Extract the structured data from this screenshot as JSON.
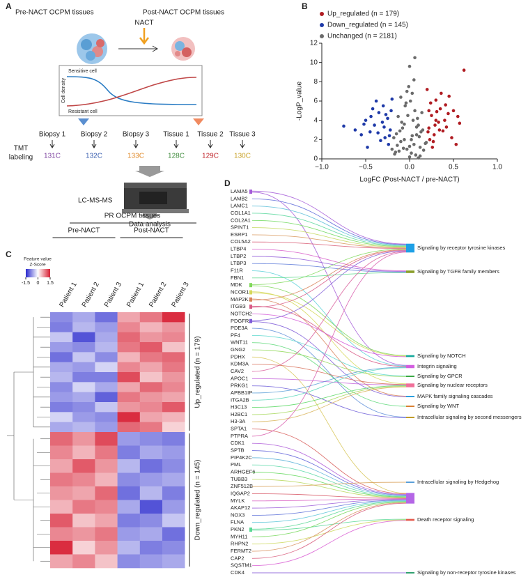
{
  "panel_a": {
    "label": "A",
    "pre_title": "Pre-NACT OCPM tissues",
    "post_title": "Post-NACT OCPM tissues",
    "treatment": "NACT",
    "sensitive": "Sensitive cell",
    "resistant": "Resistant cell",
    "density": "Cell density",
    "labeling": [
      "TMT",
      "labeling"
    ],
    "samples": [
      {
        "name": "Biopsy 1",
        "tag": "131C",
        "color": "#7b3f9e"
      },
      {
        "name": "Biopsy 2",
        "tag": "132C",
        "color": "#3a5fb0"
      },
      {
        "name": "Biopsy 3",
        "tag": "133C",
        "color": "#e08a2a"
      },
      {
        "name": "Tissue 1",
        "tag": "128C",
        "color": "#3d8a3a"
      },
      {
        "name": "Tissue 2",
        "tag": "129C",
        "color": "#c0242a"
      },
      {
        "name": "Tissue 3",
        "tag": "130C",
        "color": "#c9a227"
      }
    ],
    "instrument": "LC-MS-MS",
    "analysis": "Data analysis"
  },
  "chart_data": {
    "type": "scatter",
    "label": "B",
    "xlabel": "LogFC (Post-NACT / pre-NACT)",
    "ylabel": "-LogP_value",
    "xlim": [
      -1,
      1
    ],
    "xticks": [
      {
        "value": -1,
        "label": "−1.0"
      },
      {
        "value": -0.5,
        "label": "−0.5"
      },
      {
        "value": 0,
        "label": "0.0"
      },
      {
        "value": 0.5,
        "label": "0.5"
      },
      {
        "value": 1,
        "label": "1.0"
      }
    ],
    "ylim": [
      0,
      12
    ],
    "yticks": [
      0,
      2,
      4,
      6,
      8,
      10,
      12
    ],
    "legend": "top-left",
    "series": [
      {
        "name": "Up_regulated (n = 179)",
        "color": "#b01c22",
        "x": [
          0.25,
          0.3,
          0.22,
          0.35,
          0.4,
          0.28,
          0.45,
          0.5,
          0.62,
          0.2,
          0.33,
          0.27,
          0.38,
          0.55,
          0.42,
          0.24,
          0.31,
          0.48,
          0.21,
          0.36,
          0.29,
          0.53,
          0.26,
          0.44,
          0.23,
          0.34,
          0.41,
          0.3,
          0.57,
          0.22
        ],
        "y": [
          4.5,
          6.1,
          3.2,
          5.2,
          4.0,
          2.5,
          6.5,
          5.0,
          9.2,
          7.2,
          3.8,
          1.8,
          2.9,
          4.4,
          3.3,
          5.8,
          4.9,
          2.2,
          2.8,
          6.8,
          3.5,
          1.5,
          1.2,
          4.7,
          2.0,
          3.0,
          5.6,
          4.0,
          3.7,
          5.0
        ]
      },
      {
        "name": "Down_regulated (n = 145)",
        "color": "#1f3aa8",
        "x": [
          -0.25,
          -0.3,
          -0.22,
          -0.35,
          -0.4,
          -0.28,
          -0.45,
          -0.5,
          -0.75,
          -0.2,
          -0.33,
          -0.38,
          -0.55,
          -0.42,
          -0.24,
          -0.31,
          -0.62,
          -0.27,
          -0.48,
          -0.36,
          -0.23,
          -0.29,
          -0.44,
          -0.21,
          -0.52
        ],
        "y": [
          4.2,
          5.5,
          3.0,
          4.8,
          3.5,
          2.2,
          2.8,
          4.0,
          3.4,
          6.2,
          1.9,
          6.0,
          2.5,
          5.2,
          1.5,
          3.8,
          3.0,
          4.6,
          1.2,
          2.7,
          2.4,
          3.3,
          4.4,
          5.0,
          3.6
        ]
      },
      {
        "name": "Unchanged (n = 2181)",
        "color": "#6b6b6b",
        "x": [
          0,
          0.02,
          -0.03,
          0.05,
          -0.06,
          0.08,
          -0.1,
          0.12,
          -0.12,
          0.15,
          -0.15,
          0.18,
          -0.18,
          0.1,
          -0.08,
          0.04,
          -0.02,
          0.06,
          -0.05,
          0.13,
          -0.14,
          0.16,
          -0.17,
          0.01,
          0.03,
          -0.01,
          0.09,
          -0.09,
          0.11,
          -0.11,
          0.07,
          -0.07,
          0.14,
          -0.13,
          0.0,
          0.05,
          -0.04,
          0.02,
          -0.2,
          0.19,
          -0.1,
          0.08,
          0.12,
          -0.16,
          0.0,
          0.03,
          -0.06,
          0.1,
          -0.03,
          0.06
        ],
        "y": [
          0.2,
          0.6,
          1.0,
          1.5,
          2.0,
          2.5,
          1.8,
          1.2,
          0.8,
          3.0,
          2.6,
          1.6,
          2.2,
          3.5,
          3.2,
          4.0,
          4.5,
          5.0,
          5.5,
          2.8,
          1.4,
          0.9,
          0.5,
          6.0,
          6.8,
          7.5,
          4.2,
          3.8,
          2.3,
          2.9,
          0.4,
          1.1,
          4.8,
          4.4,
          9.6,
          8.2,
          5.8,
          2.0,
          1.0,
          1.7,
          6.4,
          3.3,
          0.3,
          0.7,
          1.3,
          2.4,
          3.6,
          0.1,
          7.0,
          10.5
        ]
      }
    ]
  },
  "heatmap": {
    "label": "C",
    "title": "PR OCPM tissues",
    "groups": [
      "Pre-NACT",
      "Post-NACT"
    ],
    "columns": [
      "Patient 1",
      "Patient 2",
      "Patient 3",
      "Patient 1",
      "Patient 2",
      "Patient 3"
    ],
    "colorbar_title": [
      "Feature value",
      "Z-Score"
    ],
    "zlim": [
      -1.5,
      1.5
    ],
    "zticks": [
      -1.5,
      0,
      1.5
    ],
    "clusters": [
      {
        "name": "Up_regulated (n = 179)",
        "rows": [
          [
            -0.8,
            -0.6,
            -1.0,
            0.6,
            0.9,
            1.4
          ],
          [
            -0.9,
            -0.5,
            -0.7,
            0.8,
            0.5,
            0.7
          ],
          [
            -0.4,
            -1.2,
            -0.6,
            1.0,
            0.7,
            0.8
          ],
          [
            -0.7,
            -0.8,
            -0.5,
            0.9,
            1.1,
            0.4
          ],
          [
            -1.0,
            -0.4,
            -0.8,
            0.5,
            0.9,
            1.0
          ],
          [
            -0.6,
            -0.7,
            -0.3,
            0.8,
            0.6,
            0.9
          ],
          [
            -0.5,
            -0.9,
            -0.9,
            1.2,
            0.4,
            0.7
          ],
          [
            -0.8,
            -0.3,
            -0.6,
            0.6,
            1.0,
            0.8
          ],
          [
            -0.7,
            -0.6,
            -1.1,
            0.9,
            0.7,
            0.6
          ],
          [
            -0.9,
            -0.8,
            -0.4,
            0.7,
            0.8,
            1.1
          ],
          [
            -0.3,
            -0.7,
            -0.8,
            1.4,
            0.6,
            0.5
          ],
          [
            -0.6,
            -0.5,
            -0.7,
            1.0,
            0.9,
            0.3
          ]
        ]
      },
      {
        "name": "Down_regulated (n = 145)",
        "rows": [
          [
            1.0,
            0.7,
            1.2,
            -0.7,
            -0.8,
            -0.9
          ],
          [
            0.8,
            0.5,
            0.9,
            -0.9,
            -0.6,
            -0.7
          ],
          [
            0.6,
            1.1,
            0.7,
            -0.5,
            -1.0,
            -0.8
          ],
          [
            0.9,
            0.8,
            0.5,
            -0.8,
            -0.7,
            -0.6
          ],
          [
            0.7,
            0.6,
            1.0,
            -1.0,
            -0.5,
            -0.9
          ],
          [
            0.5,
            0.9,
            0.8,
            -0.6,
            -1.2,
            -0.7
          ],
          [
            1.1,
            0.4,
            0.6,
            -0.9,
            -0.8,
            -0.4
          ],
          [
            0.8,
            0.7,
            0.9,
            -0.7,
            -0.6,
            -1.0
          ],
          [
            1.4,
            0.3,
            0.7,
            -0.5,
            -0.9,
            -0.8
          ],
          [
            0.6,
            0.8,
            0.4,
            -0.8,
            -0.7,
            -0.6
          ]
        ]
      }
    ]
  },
  "sankey": {
    "label": "D",
    "genes": [
      "LAMA5",
      "LAMB2",
      "LAMC1",
      "COL1A1",
      "COL2A1",
      "SPINT1",
      "ESRP1",
      "COL5A2",
      "LTBP4",
      "LTBP2",
      "LTBP3",
      "F11R",
      "FBN1",
      "MDK",
      "NCOR1",
      "MAP2K1",
      "ITGB3",
      "NOTCH2",
      "PDGFRA",
      "PDE3A",
      "PF4",
      "WNT11",
      "GNG2",
      "PDHX",
      "KDM3A",
      "CAV2",
      "APOC1",
      "PRKG1",
      "APBB1IP",
      "ITGA2B",
      "H3C13",
      "H2BC1",
      "H3-3A",
      "SPTA1",
      "PTPRA",
      "CDK1",
      "SPTB",
      "PIP4K2C",
      "PML",
      "ARHGEF6",
      "TUBB3",
      "ZNF512B",
      "IQGAP2",
      "MYLK",
      "AKAP12",
      "NOX3",
      "FLNA",
      "PKN2",
      "MYH11",
      "RHPN2",
      "FERMT2",
      "CAP2",
      "SQSTM1",
      "CDK4"
    ],
    "pathways": [
      {
        "name": "Signaling by receptor tyrosine kinases",
        "color": "#1ea0e6"
      },
      {
        "name": "Signaling by TGFB family members",
        "color": "#8a9e2a"
      },
      {
        "name": "Signaling by NOTCH",
        "color": "#16a99c"
      },
      {
        "name": "Integrin signaling",
        "color": "#d35ee0"
      },
      {
        "name": "Signaling by GPCR",
        "color": "#3aa845"
      },
      {
        "name": "Signaling by nuclear receptors",
        "color": "#f0709a"
      },
      {
        "name": "MAPK family signaling cascades",
        "color": "#2a9fe0"
      },
      {
        "name": "Signaling by WNT",
        "color": "#d98032"
      },
      {
        "name": "Intracellular signaling by second messengers",
        "color": "#c09c28"
      },
      {
        "name": "Intracellular signaling by Hedgehog",
        "color": "#5a9fd8"
      },
      {
        "name": null,
        "color": "#b466e6"
      },
      {
        "name": "Death receptor signaling",
        "color": "#e45a4c"
      },
      {
        "name": "Signaling by non-receptor tyrosine kinases",
        "color": "#30a070"
      }
    ],
    "links": [
      [
        0,
        0
      ],
      [
        0,
        3
      ],
      [
        1,
        0
      ],
      [
        2,
        0
      ],
      [
        3,
        0
      ],
      [
        4,
        0
      ],
      [
        5,
        0
      ],
      [
        6,
        0
      ],
      [
        7,
        0
      ],
      [
        8,
        1
      ],
      [
        9,
        1
      ],
      [
        10,
        1
      ],
      [
        11,
        3
      ],
      [
        12,
        1
      ],
      [
        13,
        0
      ],
      [
        13,
        2
      ],
      [
        14,
        5
      ],
      [
        14,
        2
      ],
      [
        15,
        6
      ],
      [
        15,
        0
      ],
      [
        16,
        3
      ],
      [
        16,
        0
      ],
      [
        17,
        2
      ],
      [
        18,
        0
      ],
      [
        18,
        6
      ],
      [
        19,
        8
      ],
      [
        20,
        4
      ],
      [
        21,
        7
      ],
      [
        22,
        4
      ],
      [
        23,
        10
      ],
      [
        24,
        5
      ],
      [
        25,
        0
      ],
      [
        26,
        5
      ],
      [
        27,
        8
      ],
      [
        28,
        3
      ],
      [
        29,
        3
      ],
      [
        30,
        5
      ],
      [
        31,
        5
      ],
      [
        32,
        5
      ],
      [
        33,
        10
      ],
      [
        34,
        0
      ],
      [
        35,
        10
      ],
      [
        36,
        10
      ],
      [
        37,
        10
      ],
      [
        38,
        10
      ],
      [
        39,
        10
      ],
      [
        40,
        10
      ],
      [
        41,
        9
      ],
      [
        42,
        10
      ],
      [
        43,
        10
      ],
      [
        44,
        10
      ],
      [
        45,
        10
      ],
      [
        46,
        10
      ],
      [
        47,
        10
      ],
      [
        47,
        11
      ],
      [
        48,
        10
      ],
      [
        49,
        11
      ],
      [
        50,
        10
      ],
      [
        51,
        10
      ],
      [
        52,
        11
      ],
      [
        53,
        12
      ]
    ]
  }
}
